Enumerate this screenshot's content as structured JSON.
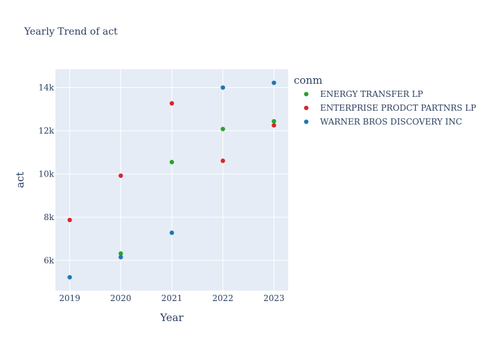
{
  "chart_data": {
    "type": "scatter",
    "title": "Yearly Trend of act",
    "xlabel": "Year",
    "ylabel": "act",
    "x": [
      2019,
      2020,
      2021,
      2022,
      2023
    ],
    "x_ticks": [
      "2019",
      "2020",
      "2021",
      "2022",
      "2023"
    ],
    "y_ticks": [
      6000,
      8000,
      10000,
      12000,
      14000
    ],
    "y_tick_labels": [
      "6k",
      "8k",
      "10k",
      "12k",
      "14k"
    ],
    "xlim": [
      2018.72,
      2023.28
    ],
    "ylim": [
      4600,
      14850
    ],
    "grid": true,
    "legend": {
      "title": "conm",
      "placement": "right"
    },
    "series": [
      {
        "name": "ENERGY TRANSFER LP",
        "color": "#2ca02c",
        "points": [
          [
            2020,
            6320
          ],
          [
            2021,
            10550
          ],
          [
            2022,
            12080
          ],
          [
            2023,
            12440
          ]
        ]
      },
      {
        "name": "ENTERPRISE PRODCT PARTNRS LP",
        "color": "#d62728",
        "points": [
          [
            2019,
            7870
          ],
          [
            2020,
            9920
          ],
          [
            2021,
            13270
          ],
          [
            2022,
            10610
          ],
          [
            2023,
            12250
          ]
        ]
      },
      {
        "name": "WARNER BROS DISCOVERY INC",
        "color": "#1f77b4",
        "points": [
          [
            2019,
            5220
          ],
          [
            2020,
            6150
          ],
          [
            2021,
            7280
          ],
          [
            2022,
            14000
          ],
          [
            2023,
            14220
          ]
        ]
      }
    ]
  }
}
